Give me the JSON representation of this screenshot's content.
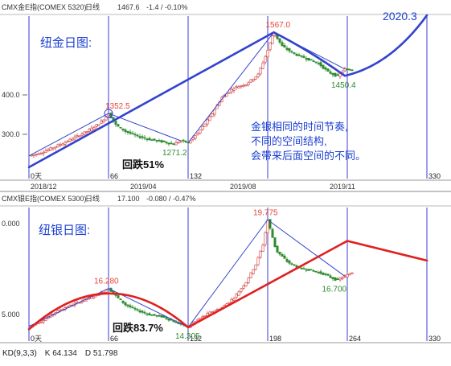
{
  "colors": {
    "up": "#d13a3a",
    "down": "#2e8b2e",
    "vline": "#3b3bd6",
    "trend_blue": "#3344cc",
    "trend_red": "#e02020",
    "label_blue": "#1b3fd1",
    "label_red": "#e8443a",
    "label_green": "#2e8b2e",
    "header_green": "#1f8f2a"
  },
  "top_panel": {
    "header": {
      "symbol": "CMX金E指(COMEX 5320)",
      "period": "日线",
      "price": "1467.6",
      "change": "-1.4 / -0.10%"
    },
    "title": "纽金日图:",
    "year_label": "2020.3",
    "note_lines": [
      "金银相同的时间节奏,",
      "不同的空间结构,",
      "会带来后面空间的不同。"
    ],
    "drop_label": "回跌51%",
    "y_ticks": [
      "400.0",
      "300.0"
    ],
    "date_ticks": [
      "2018/12",
      "2019/04",
      "2019/08",
      "2019/11"
    ],
    "day_labels": [
      "0天",
      "66",
      "132",
      "330"
    ],
    "price_labels": [
      "1352.5",
      "1271.2",
      "1567.0",
      "1450.4"
    ]
  },
  "bottom_panel": {
    "header": {
      "symbol": "CMX银E指(COMEX 5300)",
      "period": "日线",
      "price": "17.100",
      "change": "-0.080 / -0.47%"
    },
    "title": "纽银日图:",
    "drop_label": "回跌83.7%",
    "y_ticks": [
      "0.000",
      "5.000"
    ],
    "day_labels": [
      "0天",
      "66",
      "132",
      "198",
      "264",
      "330"
    ],
    "price_labels": [
      "16.280",
      "14.305",
      "19.775",
      "16.700"
    ]
  },
  "kd_bar": {
    "name": "KD(9,3,3)",
    "k": "K 64.134",
    "d": "D 51.798"
  },
  "chart_data": [
    {
      "type": "line",
      "title": "纽金日图:",
      "x_unit": "trading days",
      "day_markers": [
        0,
        66,
        132,
        198,
        264,
        330
      ],
      "series": [
        {
          "name": "",
          "points": [
            [
              0,
              1240
            ],
            [
              10,
              1248
            ],
            [
              20,
              1262
            ],
            [
              30,
              1276
            ],
            [
              40,
              1292
            ],
            [
              50,
              1308
            ],
            [
              60,
              1330
            ],
            [
              66,
              1352.5
            ],
            [
              72,
              1322
            ],
            [
              80,
              1305
            ],
            [
              90,
              1292
            ],
            [
              100,
              1284
            ],
            [
              110,
              1278
            ],
            [
              120,
              1271.2
            ],
            [
              126,
              1280
            ],
            [
              132,
              1275
            ],
            [
              140,
              1300
            ],
            [
              150,
              1342
            ],
            [
              160,
              1395
            ],
            [
              170,
              1420
            ],
            [
              180,
              1430
            ],
            [
              190,
              1455
            ],
            [
              198,
              1520
            ],
            [
              203,
              1567.0
            ],
            [
              210,
              1530
            ],
            [
              220,
              1510
            ],
            [
              230,
              1498
            ],
            [
              240,
              1485
            ],
            [
              248,
              1462
            ],
            [
              256,
              1450.4
            ],
            [
              262,
              1470
            ],
            [
              268,
              1467.6
            ]
          ]
        }
      ],
      "annotations": [
        {
          "x": 66,
          "y": 1352.5,
          "text": "1352.5"
        },
        {
          "x": 120,
          "y": 1271.2,
          "text": "1271.2"
        },
        {
          "x": 203,
          "y": 1567.0,
          "text": "1567.0"
        },
        {
          "x": 256,
          "y": 1450.4,
          "text": "1450.4"
        }
      ]
    },
    {
      "type": "line",
      "title": "纽银日图:",
      "x_unit": "trading days",
      "day_markers": [
        0,
        66,
        132,
        198,
        264,
        330
      ],
      "series": [
        {
          "name": "",
          "points": [
            [
              0,
              14.35
            ],
            [
              10,
              14.6
            ],
            [
              20,
              15.0
            ],
            [
              30,
              15.3
            ],
            [
              40,
              15.55
            ],
            [
              50,
              15.8
            ],
            [
              60,
              16.05
            ],
            [
              66,
              16.28
            ],
            [
              72,
              15.9
            ],
            [
              80,
              15.45
            ],
            [
              90,
              15.15
            ],
            [
              100,
              14.95
            ],
            [
              110,
              14.85
            ],
            [
              120,
              14.6
            ],
            [
              126,
              14.45
            ],
            [
              132,
              14.305
            ],
            [
              140,
              14.7
            ],
            [
              150,
              15.05
            ],
            [
              160,
              15.3
            ],
            [
              170,
              15.8
            ],
            [
              180,
              16.6
            ],
            [
              188,
              17.5
            ],
            [
              194,
              18.5
            ],
            [
              198,
              19.775
            ],
            [
              205,
              18.2
            ],
            [
              215,
              17.6
            ],
            [
              225,
              17.3
            ],
            [
              235,
              17.2
            ],
            [
              245,
              17.0
            ],
            [
              255,
              16.7
            ],
            [
              262,
              16.9
            ],
            [
              268,
              17.1
            ]
          ]
        }
      ],
      "annotations": [
        {
          "x": 66,
          "y": 16.28,
          "text": "16.280"
        },
        {
          "x": 132,
          "y": 14.305,
          "text": "14.305"
        },
        {
          "x": 198,
          "y": 19.775,
          "text": "19.775"
        },
        {
          "x": 255,
          "y": 16.7,
          "text": "16.700"
        }
      ]
    }
  ]
}
